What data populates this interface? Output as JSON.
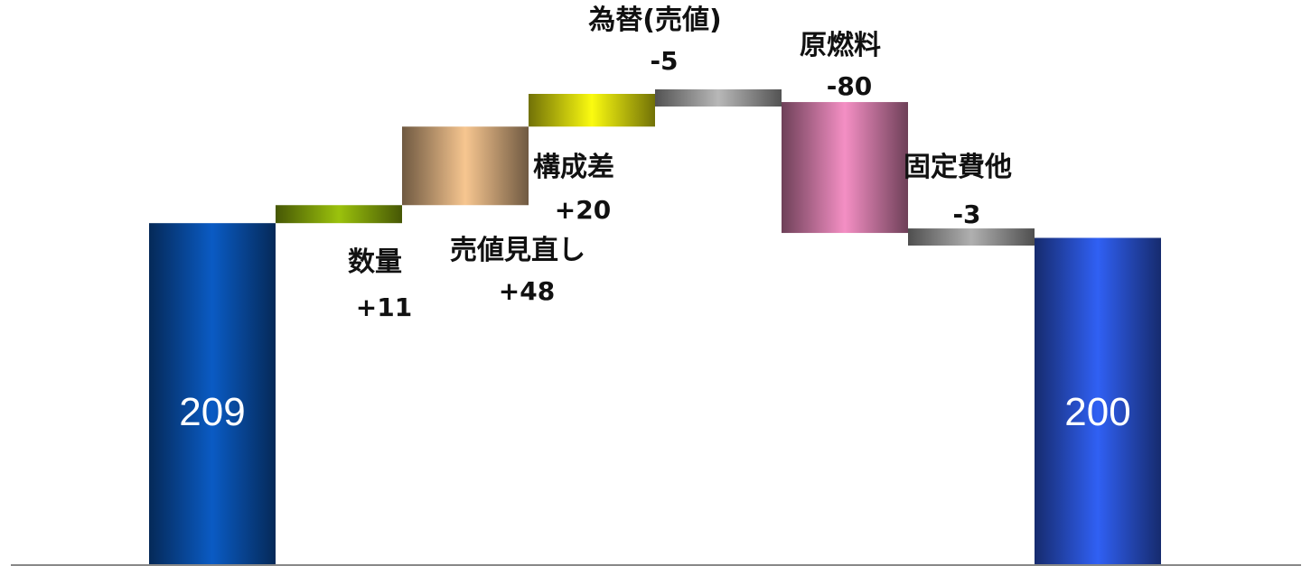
{
  "chart_data": {
    "type": "bar",
    "subtype": "waterfall",
    "grid": false,
    "legend": "none",
    "ylim": [
      0,
      300
    ],
    "steps": [
      {
        "label": "",
        "value": 209,
        "value_text": "209",
        "kind": "total",
        "color": "#0a5bc4"
      },
      {
        "label": "数量",
        "value": 11,
        "value_text": "+11",
        "kind": "delta",
        "color": "#9bc20c"
      },
      {
        "label": "売値見直し",
        "value": 48,
        "value_text": "+48",
        "kind": "delta",
        "color": "#f7c690"
      },
      {
        "label": "構成差",
        "value": 20,
        "value_text": "+20",
        "kind": "delta",
        "color": "#fbfb10"
      },
      {
        "label": "為替(売値)",
        "value": -5,
        "value_text": "-5",
        "kind": "delta",
        "color": "#b8b8b8"
      },
      {
        "label": "原燃料",
        "value": -80,
        "value_text": "-80",
        "kind": "delta",
        "color": "#f48fc4"
      },
      {
        "label": "固定費他",
        "value": -3,
        "value_text": "-3",
        "kind": "delta",
        "color": "#b0b0b0"
      },
      {
        "label": "",
        "value": 200,
        "value_text": "200",
        "kind": "total",
        "color": "#3060f4"
      }
    ]
  }
}
